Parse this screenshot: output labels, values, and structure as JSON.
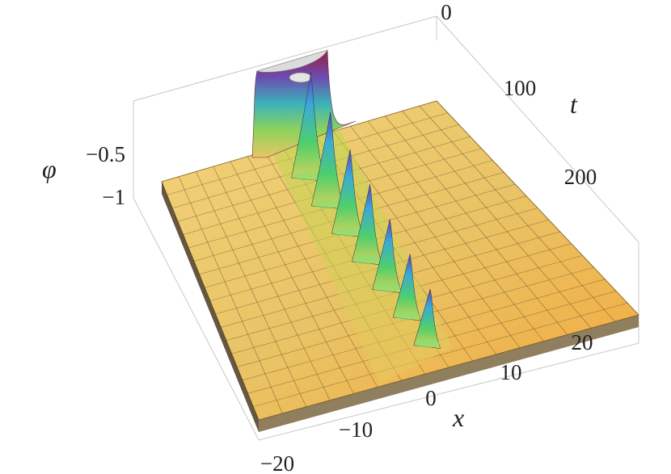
{
  "chart_data": {
    "type": "surface3d",
    "xlabel": "x",
    "ylabel": "t",
    "zlabel": "φ",
    "x_ticks": [
      "−20",
      "−10",
      "0",
      "10",
      "20"
    ],
    "t_ticks": [
      "0",
      "100",
      "200"
    ],
    "z_ticks": [
      "−0.5",
      "−1"
    ],
    "xlim": [
      -20,
      20
    ],
    "tlim": [
      0,
      280
    ],
    "zlim": [
      -1,
      0
    ],
    "background_level": -1,
    "initial_lump": {
      "x_center": -8,
      "t_range": [
        0,
        45
      ],
      "peak": 0,
      "note_clipped": true
    },
    "peaks": [
      {
        "t": 40,
        "height": -0.55
      },
      {
        "t": 75,
        "height": -0.6
      },
      {
        "t": 110,
        "height": -0.64
      },
      {
        "t": 145,
        "height": -0.67
      },
      {
        "t": 180,
        "height": -0.7
      },
      {
        "t": 215,
        "height": -0.73
      },
      {
        "t": 250,
        "height": -0.76
      }
    ],
    "colors": {
      "low": "#f5b43a",
      "mid": "#c8d24a",
      "green": "#4fc96a",
      "cyan": "#45b5d8",
      "blue": "#4a63d0",
      "high": "#8a1e3a"
    }
  }
}
